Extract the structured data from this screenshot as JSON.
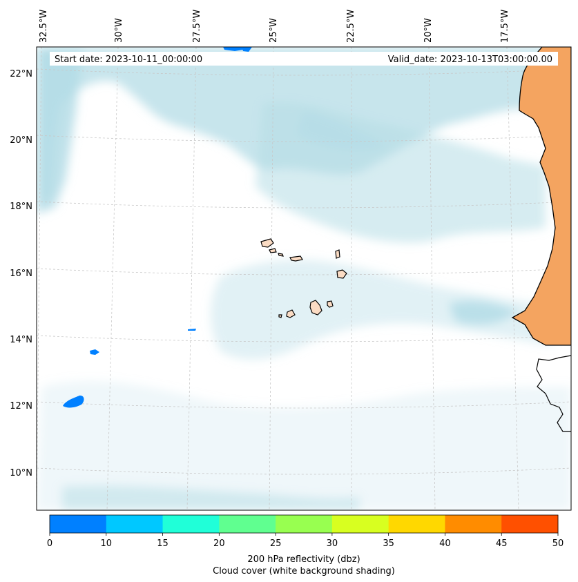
{
  "header": {
    "start_date": "Start date: 2023-10-11_00:00:00",
    "valid_date": "Valid_date: 2023-10-13T03:00:00.00"
  },
  "axes": {
    "lon_labels": [
      "32.5°W",
      "30°W",
      "27.5°W",
      "25°W",
      "22.5°W",
      "20°W",
      "17.5°W"
    ],
    "lat_labels": [
      "22°N",
      "20°N",
      "18°N",
      "16°N",
      "14°N",
      "12°N",
      "10°N"
    ]
  },
  "colorbar": {
    "ticks": [
      "0",
      "10",
      "15",
      "20",
      "25",
      "30",
      "35",
      "40",
      "45",
      "50"
    ],
    "colors": [
      "#0080ff",
      "#00c8ff",
      "#20ffd8",
      "#60ff90",
      "#98ff50",
      "#d8ff20",
      "#ffd800",
      "#ff8c00",
      "#ff5000"
    ],
    "label_line1": "200 hPa reflectivity (dbz)",
    "label_line2": "Cloud cover (white background shading)"
  },
  "colors": {
    "land": "#f4a460",
    "island": "#fbdcc4",
    "cloud": "#b4dce6",
    "grid": "#c8c8c8"
  }
}
